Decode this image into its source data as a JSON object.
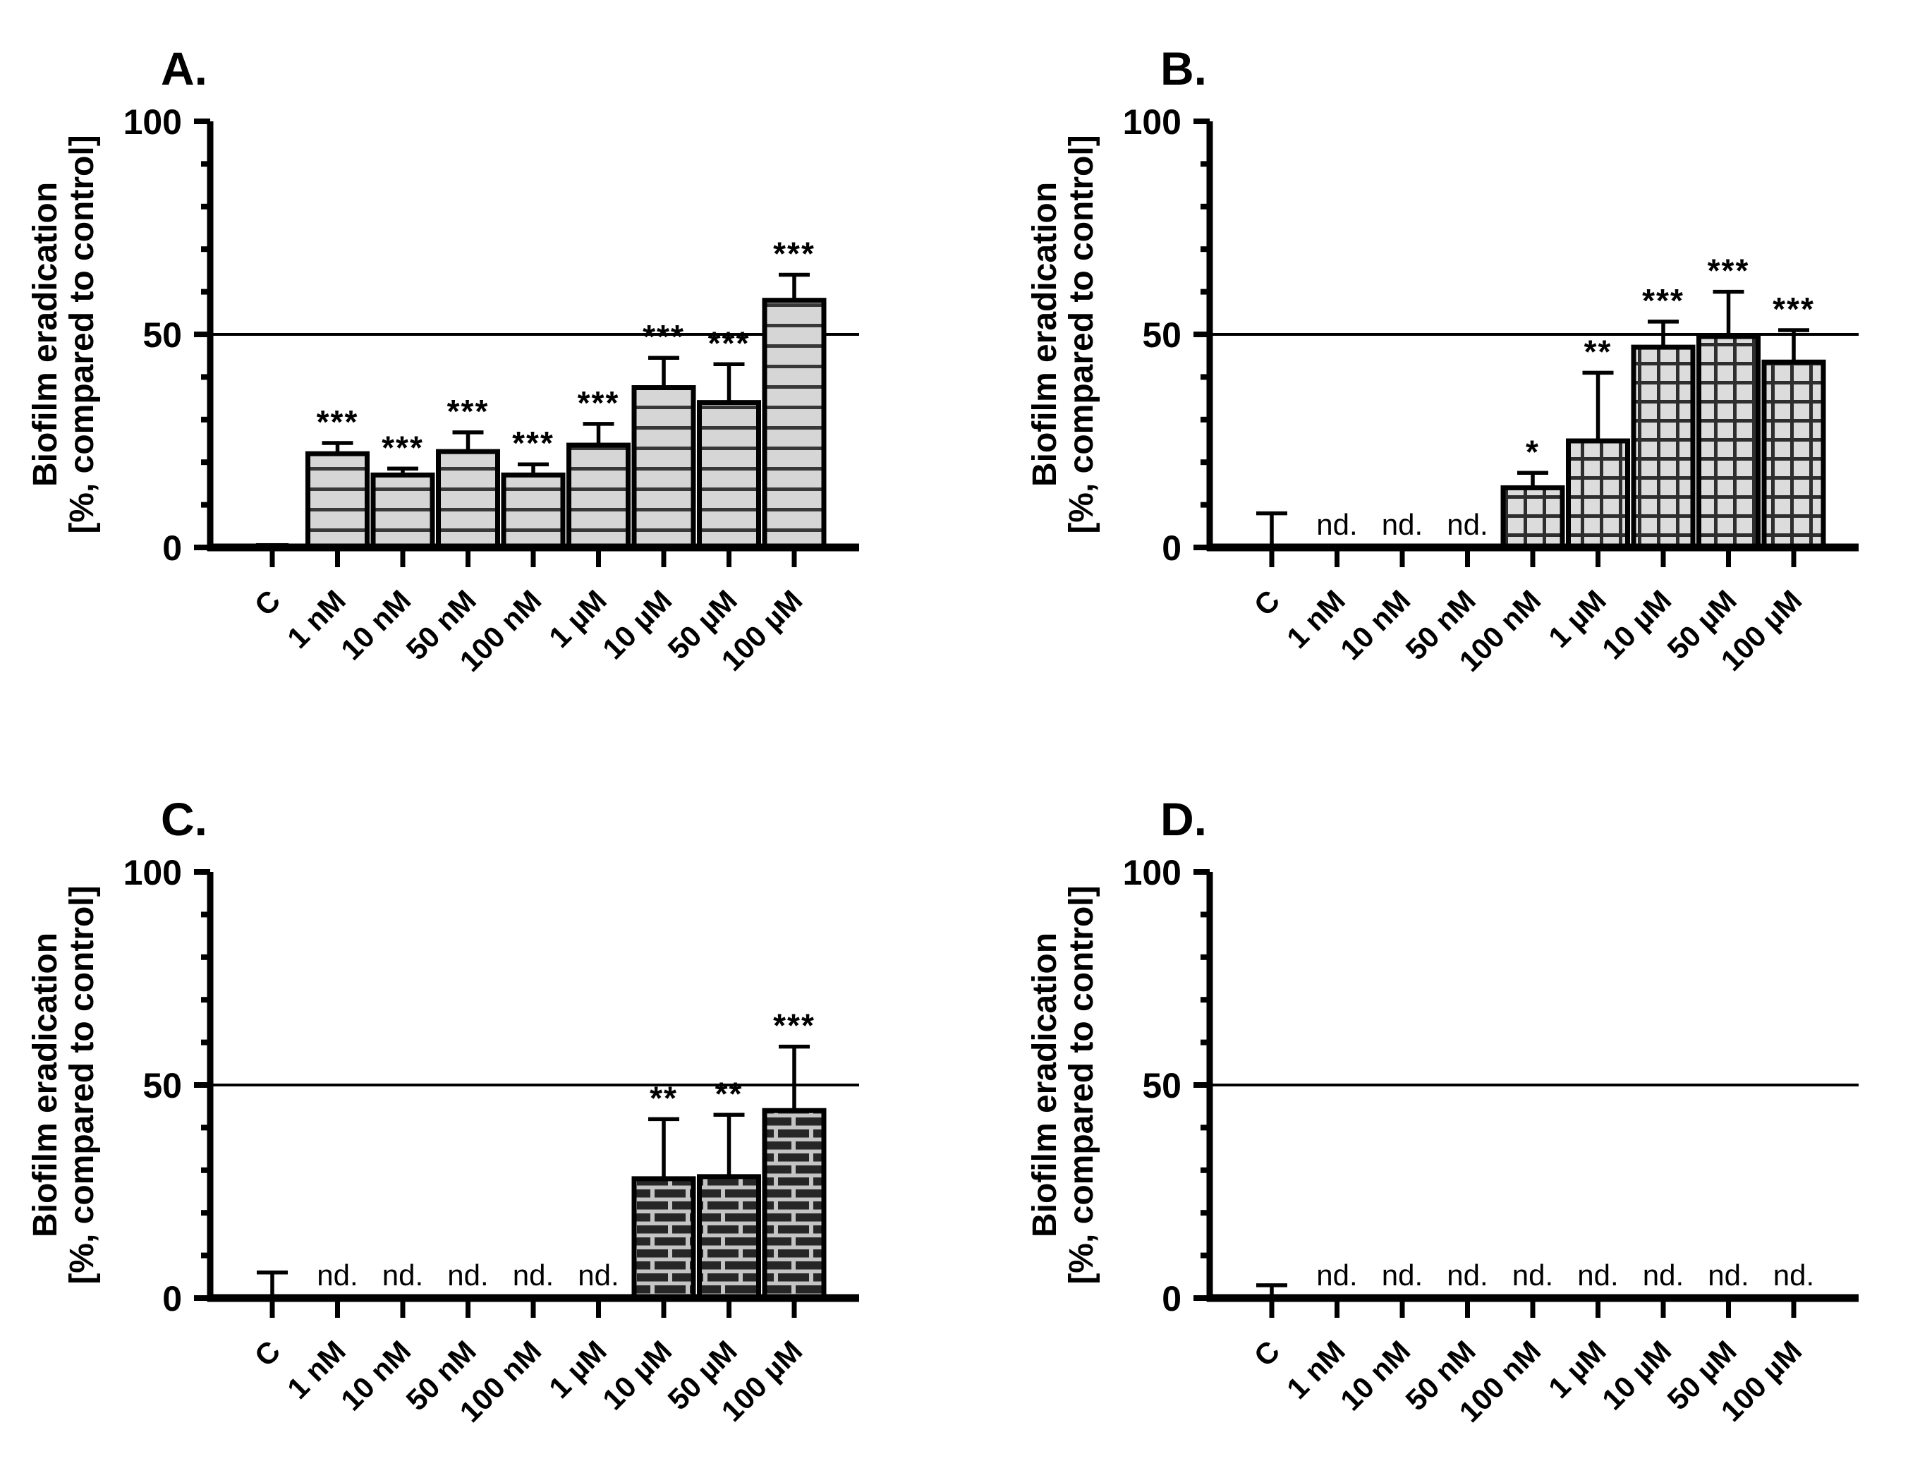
{
  "figure": {
    "background_color": "#ffffff",
    "axis_color": "#000000",
    "nd_label": "nd.",
    "colors": {
      "stripe_fill": "#d6d6d6",
      "stripe_line": "#383838",
      "grid_fill": "#dcdcdc",
      "grid_line": "#2e2e2e",
      "brick_fill": "#262626",
      "brick_mortar": "#c4c4c4",
      "control_bar": "#000000"
    }
  },
  "chart_data": [
    {
      "type": "bar",
      "title": "A.",
      "ylabel_lines": [
        "Biofilm eradication",
        "[%, compared to control]"
      ],
      "ylim": [
        0,
        100
      ],
      "yticks": [
        0,
        50,
        100
      ],
      "minor_tick_step": 10,
      "reference_line": 50,
      "legend_position": "none",
      "grid": false,
      "bar_pattern": "horizontal-lines",
      "control_style": "tiny-bar",
      "categories": [
        "C",
        "1 nM",
        "10 nM",
        "50 nM",
        "100 nM",
        "1 µM",
        "10 µM",
        "50 µM",
        "100 µM"
      ],
      "values": [
        1,
        22,
        17,
        22.5,
        17,
        24,
        37.5,
        34,
        58
      ],
      "error_top": [
        null,
        24.5,
        18.5,
        27,
        19.5,
        29,
        44.5,
        43,
        64
      ],
      "significance": [
        "",
        "***",
        "***",
        "***",
        "***",
        "***",
        "***",
        "***",
        "***"
      ],
      "nd_flags": [
        false,
        false,
        false,
        false,
        false,
        false,
        false,
        false,
        false
      ]
    },
    {
      "type": "bar",
      "title": "B.",
      "ylabel_lines": [
        "Biofilm eradication",
        "[%, compared to control]"
      ],
      "ylim": [
        0,
        100
      ],
      "yticks": [
        0,
        50,
        100
      ],
      "minor_tick_step": 10,
      "reference_line": 50,
      "legend_position": "none",
      "grid": false,
      "bar_pattern": "grid",
      "control_style": "whisker",
      "categories": [
        "C",
        "1 nM",
        "10 nM",
        "50 nM",
        "100 nM",
        "1 µM",
        "10 µM",
        "50 µM",
        "100 µM"
      ],
      "values": [
        0,
        null,
        null,
        null,
        14,
        25,
        47,
        49.5,
        43.5
      ],
      "error_top": [
        8,
        null,
        null,
        null,
        17.5,
        41,
        53,
        60,
        51
      ],
      "significance": [
        "",
        "",
        "",
        "",
        "*",
        "**",
        "***",
        "***",
        "***"
      ],
      "nd_flags": [
        false,
        true,
        true,
        true,
        false,
        false,
        false,
        false,
        false
      ]
    },
    {
      "type": "bar",
      "title": "C.",
      "ylabel_lines": [
        "Biofilm eradication",
        "[%, compared to control]"
      ],
      "ylim": [
        0,
        100
      ],
      "yticks": [
        0,
        50,
        100
      ],
      "minor_tick_step": 10,
      "reference_line": 50,
      "legend_position": "none",
      "grid": false,
      "bar_pattern": "bricks",
      "control_style": "whisker",
      "categories": [
        "C",
        "1 nM",
        "10 nM",
        "50 nM",
        "100 nM",
        "1 µM",
        "10 µM",
        "50 µM",
        "100 µM"
      ],
      "values": [
        0,
        null,
        null,
        null,
        null,
        null,
        28,
        28.5,
        44
      ],
      "error_top": [
        6,
        null,
        null,
        null,
        null,
        null,
        42,
        43,
        59
      ],
      "significance": [
        "",
        "",
        "",
        "",
        "",
        "",
        "**",
        "**",
        "***"
      ],
      "nd_flags": [
        false,
        true,
        true,
        true,
        true,
        true,
        false,
        false,
        false
      ]
    },
    {
      "type": "bar",
      "title": "D.",
      "ylabel_lines": [
        "Biofilm eradication",
        "[%, compared to control]"
      ],
      "ylim": [
        0,
        100
      ],
      "yticks": [
        0,
        50,
        100
      ],
      "minor_tick_step": 10,
      "reference_line": 50,
      "legend_position": "none",
      "grid": false,
      "bar_pattern": "none",
      "control_style": "whisker",
      "categories": [
        "C",
        "1 nM",
        "10 nM",
        "50 nM",
        "100 nM",
        "1 µM",
        "10 µM",
        "50 µM",
        "100 µM"
      ],
      "values": [
        0,
        null,
        null,
        null,
        null,
        null,
        null,
        null,
        null
      ],
      "error_top": [
        3,
        null,
        null,
        null,
        null,
        null,
        null,
        null,
        null
      ],
      "significance": [
        "",
        "",
        "",
        "",
        "",
        "",
        "",
        "",
        ""
      ],
      "nd_flags": [
        false,
        true,
        true,
        true,
        true,
        true,
        true,
        true,
        true
      ]
    }
  ]
}
